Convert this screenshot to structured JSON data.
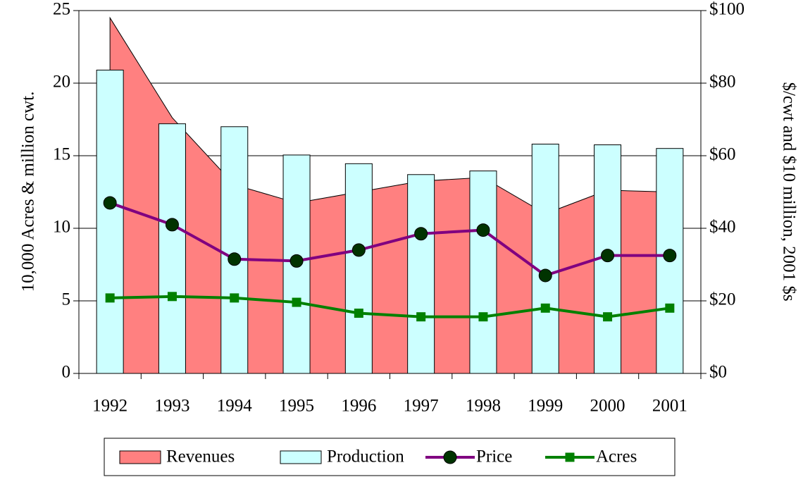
{
  "chart_data": {
    "type": "combo",
    "y_label": "10,000 Acres & million cwt.",
    "y2_label": "$/cwt and $10 million, 2001 $s",
    "categories": [
      "1992",
      "1993",
      "1994",
      "1995",
      "1996",
      "1997",
      "1998",
      "1999",
      "2000",
      "2001"
    ],
    "ylim": [
      0,
      25
    ],
    "yticks": [
      0,
      5,
      10,
      15,
      20,
      25
    ],
    "y2lim": [
      0,
      100
    ],
    "y2ticks": [
      {
        "value": 0,
        "label": "$0"
      },
      {
        "value": 20,
        "label": "$20"
      },
      {
        "value": 40,
        "label": "$40"
      },
      {
        "value": 60,
        "label": "$60"
      },
      {
        "value": 80,
        "label": "$80"
      },
      {
        "value": 100,
        "label": "$100"
      }
    ],
    "grid": true,
    "legend": "bottom",
    "series": [
      {
        "name": "Revenues",
        "type": "area",
        "axis": "y2",
        "color": "#ff8080",
        "values": [
          98,
          70.5,
          52,
          47,
          50,
          53,
          54,
          44,
          50.5,
          50
        ]
      },
      {
        "name": "Production",
        "type": "bar",
        "color": "#ccffff",
        "values": [
          20.9,
          17.2,
          17.0,
          15.05,
          14.45,
          13.7,
          13.95,
          15.8,
          15.75,
          15.5
        ]
      },
      {
        "name": "Price",
        "type": "line",
        "axis": "y2",
        "marker": "circle",
        "color": "#800080",
        "marker_color": "#003300",
        "values": [
          47,
          41,
          31.5,
          31,
          34,
          38.5,
          39.5,
          27,
          32.5,
          32.5
        ]
      },
      {
        "name": "Acres",
        "type": "line",
        "marker": "square",
        "color": "#008000",
        "marker_color": "#008000",
        "values": [
          5.2,
          5.3,
          5.2,
          4.9,
          4.15,
          3.9,
          3.9,
          4.5,
          3.9,
          4.5
        ]
      }
    ]
  }
}
